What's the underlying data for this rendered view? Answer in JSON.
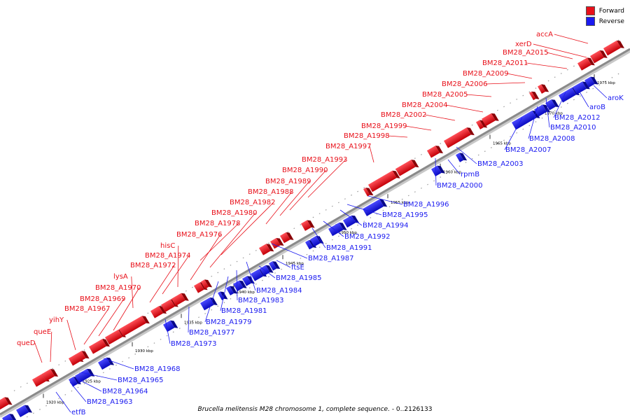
{
  "legend": {
    "forward": "Forward",
    "reverse": "Reverse"
  },
  "colors": {
    "forward": "#e8101a",
    "reverse": "#1a1af0",
    "axis": "#8a8a8a"
  },
  "caption": {
    "organism": "Brucella melitensis M28 chromosome 1, complete sequence.",
    "range": " - 0..2126133"
  },
  "ticks": [
    "1920 kbp",
    "1925 kbp",
    "1930 kbp",
    "1935 kbp",
    "1940 kbp",
    "1945 kbp",
    "1950 kbp",
    "1955 kbp",
    "1960 kbp",
    "1965 kbp",
    "1970 kbp",
    "1975 kbp"
  ],
  "forward_labels": [
    "queD",
    "queE",
    "yihY",
    "BM28_A1967",
    "BM28_A1969",
    "BM28_A1970",
    "lysA",
    "BM28_A1972",
    "BM28_A1974",
    "hisC",
    "BM28_A1976",
    "BM28_A1978",
    "BM28_A1980",
    "BM28_A1982",
    "BM28_A1988",
    "BM28_A1989",
    "BM28_A1990",
    "BM28_A1993",
    "BM28_A1997",
    "BM28_A1998",
    "BM28_A1999",
    "BM28_A2002",
    "BM28_A2004",
    "BM28_A2005",
    "BM28_A2006",
    "BM28_A2009",
    "BM28_A2011",
    "BM28_A2015",
    "xerD",
    "accA"
  ],
  "reverse_labels": [
    "etfB",
    "BM28_A1963",
    "BM28_A1964",
    "BM28_A1965",
    "BM28_A1968",
    "BM28_A1973",
    "BM28_A1977",
    "BM28_A1979",
    "BM28_A1981",
    "BM28_A1983",
    "BM28_A1984",
    "BM28_A1985",
    "ftsE",
    "BM28_A1987",
    "BM28_A1991",
    "BM28_A1992",
    "BM28_A1994",
    "BM28_A1995",
    "BM28_A1996",
    "BM28_A2000",
    "rpmB",
    "BM28_A2003",
    "BM28_A2007",
    "BM28_A2008",
    "BM28_A2010",
    "BM28_A2012",
    "aroB",
    "aroK"
  ]
}
